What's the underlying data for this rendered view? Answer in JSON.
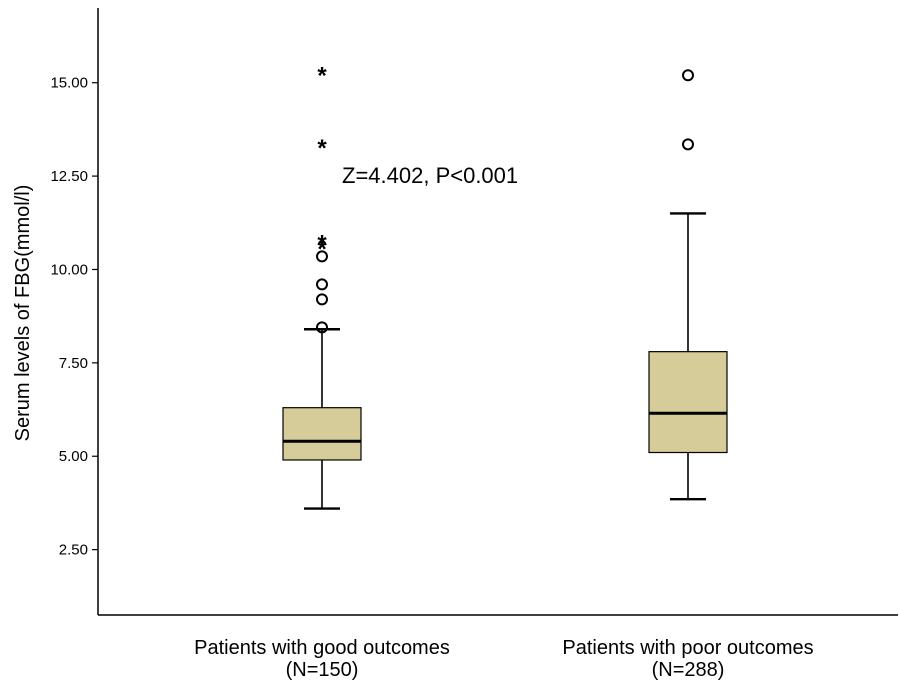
{
  "chart_data": {
    "type": "box",
    "ylabel": "Serum levels of FBG(mmol/l)",
    "xlabel": "",
    "ylim": [
      0.75,
      17.0
    ],
    "yticks": [
      2.5,
      5.0,
      7.5,
      10.0,
      12.5,
      15.0
    ],
    "ytick_labels": [
      "2.50",
      "5.00",
      "7.50",
      "10.00",
      "12.50",
      "15.00"
    ],
    "grid": false,
    "box_color": "#d6cc9a",
    "categories": [
      {
        "label": "Patients with good outcomes",
        "n_label": "(N=150)",
        "whisker_low": 3.6,
        "q1": 4.9,
        "median": 5.4,
        "q3": 6.3,
        "whisker_high": 8.4,
        "outliers": [
          8.45,
          9.2,
          9.6,
          10.35
        ],
        "extremes": [
          10.6,
          10.75,
          13.3,
          15.25
        ]
      },
      {
        "label": "Patients with poor outcomes",
        "n_label": "(N=288)",
        "whisker_low": 3.85,
        "q1": 5.1,
        "median": 6.15,
        "q3": 7.8,
        "whisker_high": 11.5,
        "outliers": [
          13.35,
          15.2
        ],
        "extremes": []
      }
    ],
    "annotation": "Z=4.402, P<0.001"
  }
}
